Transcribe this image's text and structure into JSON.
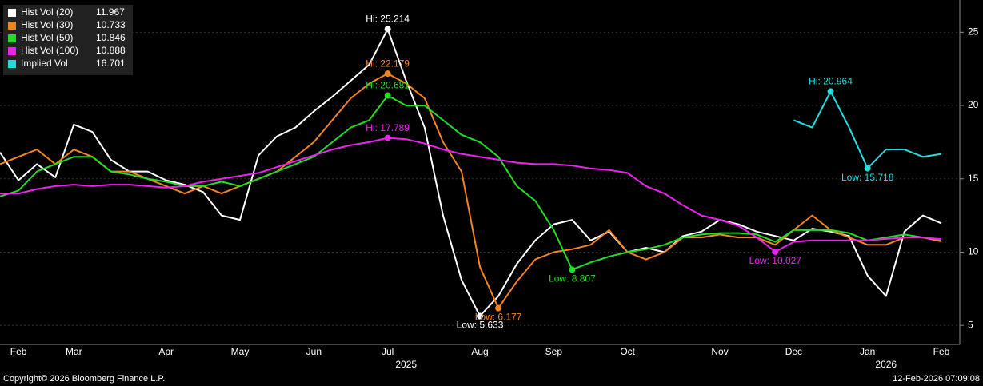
{
  "chart_data": {
    "type": "line",
    "categories": [
      null,
      "Feb",
      null,
      null,
      "Mar",
      null,
      null,
      null,
      null,
      "Apr",
      null,
      null,
      null,
      "May",
      null,
      null,
      null,
      "Jun",
      null,
      null,
      null,
      "Jul",
      null,
      null,
      null,
      null,
      "Aug",
      null,
      null,
      null,
      "Sep",
      null,
      null,
      null,
      "Oct",
      null,
      null,
      null,
      null,
      "Nov",
      null,
      null,
      null,
      "Dec",
      null,
      null,
      null,
      "Jan",
      null,
      null,
      null,
      "Feb"
    ],
    "series": [
      {
        "name": "Hist Vol (20)",
        "color": "#ffffff",
        "values": [
          16.8,
          14.9,
          16.0,
          15.1,
          18.7,
          18.2,
          16.3,
          15.5,
          15.5,
          14.9,
          14.6,
          14.1,
          12.5,
          12.2,
          16.6,
          17.9,
          18.5,
          19.6,
          20.6,
          21.7,
          22.8,
          25.214,
          21.7,
          18.5,
          12.5,
          8.1,
          5.633,
          7.0,
          9.2,
          10.8,
          11.9,
          12.2,
          10.8,
          11.4,
          10.0,
          10.3,
          10.0,
          11.1,
          11.4,
          12.2,
          11.9,
          11.4,
          11.1,
          10.8,
          11.6,
          11.4,
          11.1,
          8.4,
          7.0,
          11.4,
          12.5,
          11.967
        ]
      },
      {
        "name": "Hist Vol (30)",
        "color": "#f5841f",
        "values": [
          16.0,
          16.5,
          17.0,
          16.0,
          17.0,
          16.5,
          15.5,
          15.5,
          15.0,
          14.5,
          14.0,
          14.5,
          14.0,
          14.5,
          15.0,
          15.5,
          16.5,
          17.5,
          19.0,
          20.5,
          21.5,
          22.179,
          21.5,
          20.5,
          17.5,
          15.5,
          9.0,
          6.177,
          8.0,
          9.5,
          10.0,
          10.2,
          10.5,
          11.5,
          10.0,
          9.5,
          10.0,
          11.0,
          11.0,
          11.2,
          11.0,
          11.0,
          10.5,
          11.5,
          12.5,
          11.5,
          11.0,
          10.5,
          10.5,
          11.0,
          11.0,
          10.733
        ]
      },
      {
        "name": "Hist Vol (50)",
        "color": "#22dd22",
        "values": [
          13.8,
          14.2,
          15.5,
          16.0,
          16.5,
          16.5,
          15.5,
          15.3,
          15.0,
          14.8,
          14.5,
          14.5,
          14.8,
          14.5,
          15.0,
          15.5,
          16.0,
          16.5,
          17.5,
          18.5,
          19.0,
          20.681,
          20.0,
          20.0,
          19.0,
          18.0,
          17.5,
          16.5,
          14.5,
          13.5,
          11.5,
          8.807,
          9.3,
          9.7,
          10.0,
          10.2,
          10.5,
          11.0,
          11.2,
          11.3,
          11.3,
          11.2,
          10.7,
          11.5,
          11.5,
          11.5,
          11.3,
          10.8,
          11.0,
          11.2,
          11.0,
          10.846
        ]
      },
      {
        "name": "Hist Vol (100)",
        "color": "#ee22ee",
        "values": [
          14.0,
          14.0,
          14.3,
          14.5,
          14.6,
          14.5,
          14.6,
          14.6,
          14.5,
          14.4,
          14.5,
          14.8,
          15.0,
          15.2,
          15.4,
          15.8,
          16.2,
          16.6,
          17.0,
          17.3,
          17.5,
          17.789,
          17.7,
          17.4,
          17.0,
          16.7,
          16.5,
          16.3,
          16.1,
          16.0,
          16.0,
          15.9,
          15.7,
          15.6,
          15.4,
          14.5,
          14.0,
          13.2,
          12.5,
          12.2,
          11.8,
          11.0,
          10.027,
          10.7,
          10.8,
          10.8,
          10.8,
          10.8,
          10.9,
          11.0,
          11.0,
          10.888
        ]
      },
      {
        "name": "Implied Vol",
        "color": "#22dddd",
        "values": [
          null,
          null,
          null,
          null,
          null,
          null,
          null,
          null,
          null,
          null,
          null,
          null,
          null,
          null,
          null,
          null,
          null,
          null,
          null,
          null,
          null,
          null,
          null,
          null,
          null,
          null,
          null,
          null,
          null,
          null,
          null,
          null,
          null,
          null,
          null,
          null,
          null,
          null,
          null,
          null,
          null,
          null,
          null,
          19.0,
          18.5,
          20.964,
          18.5,
          15.718,
          17.0,
          17.0,
          16.5,
          16.701
        ]
      }
    ],
    "annotations": [
      {
        "series": 0,
        "index": 21,
        "text": "Hi: 25.214"
      },
      {
        "series": 0,
        "index": 26,
        "text": "Low: 5.633"
      },
      {
        "series": 1,
        "index": 21,
        "text": "Hi: 22.179"
      },
      {
        "series": 1,
        "index": 27,
        "text": "Low: 6.177"
      },
      {
        "series": 2,
        "index": 21,
        "text": "Hi: 20.681"
      },
      {
        "series": 2,
        "index": 31,
        "text": "Low: 8.807"
      },
      {
        "series": 3,
        "index": 21,
        "text": "Hi: 17.789"
      },
      {
        "series": 3,
        "index": 42,
        "text": "Low: 10.027"
      },
      {
        "series": 4,
        "index": 45,
        "text": "Hi: 20.964"
      },
      {
        "series": 4,
        "index": 47,
        "text": "Low: 15.718"
      }
    ],
    "year_labels": [
      {
        "text": "2025",
        "index": 22
      },
      {
        "text": "2026",
        "index": 48
      }
    ],
    "ylim": [
      3.7,
      27.2
    ],
    "yticks": [
      5,
      10,
      15,
      20,
      25
    ],
    "grid": true,
    "footer_left": "Copyright© 2026 Bloomberg Finance L.P.",
    "footer_right": "12-Feb-2026 07:09:08"
  }
}
